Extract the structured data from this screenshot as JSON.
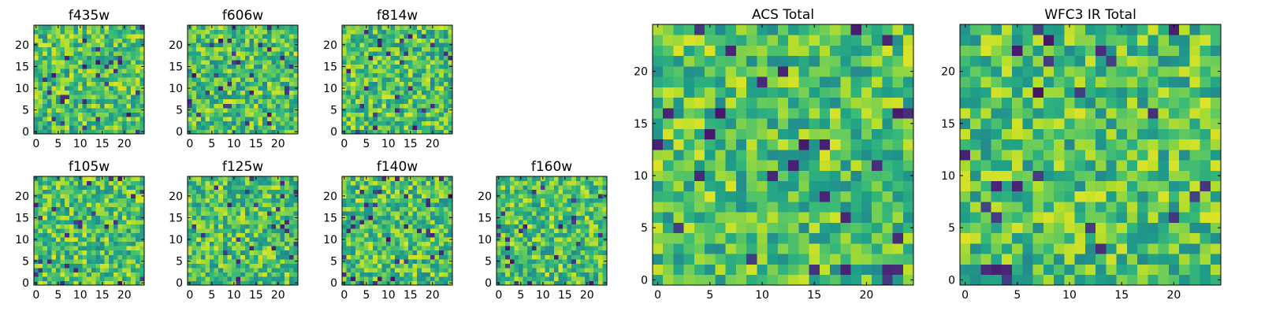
{
  "chart_data": [
    {
      "type": "heatmap",
      "title": "f435w",
      "xlim": [
        -0.5,
        24.5
      ],
      "ylim": [
        -0.5,
        24.5
      ],
      "size": 25,
      "seed": 11,
      "xticks": [
        0,
        5,
        10,
        15,
        20
      ],
      "yticks": [
        0,
        5,
        10,
        15,
        20
      ],
      "colormap": "viridis",
      "grid": false
    },
    {
      "type": "heatmap",
      "title": "f606w",
      "xlim": [
        -0.5,
        24.5
      ],
      "ylim": [
        -0.5,
        24.5
      ],
      "size": 25,
      "seed": 23,
      "xticks": [
        0,
        5,
        10,
        15,
        20
      ],
      "yticks": [
        0,
        5,
        10,
        15,
        20
      ],
      "colormap": "viridis",
      "grid": false
    },
    {
      "type": "heatmap",
      "title": "f814w",
      "xlim": [
        -0.5,
        24.5
      ],
      "ylim": [
        -0.5,
        24.5
      ],
      "size": 25,
      "seed": 37,
      "xticks": [
        0,
        5,
        10,
        15,
        20
      ],
      "yticks": [
        0,
        5,
        10,
        15,
        20
      ],
      "colormap": "viridis",
      "grid": false
    },
    {
      "type": "heatmap",
      "title": "f105w",
      "xlim": [
        -0.5,
        24.5
      ],
      "ylim": [
        -0.5,
        24.5
      ],
      "size": 25,
      "seed": 41,
      "xticks": [
        0,
        5,
        10,
        15,
        20
      ],
      "yticks": [
        0,
        5,
        10,
        15,
        20
      ],
      "colormap": "viridis",
      "grid": false
    },
    {
      "type": "heatmap",
      "title": "f125w",
      "xlim": [
        -0.5,
        24.5
      ],
      "ylim": [
        -0.5,
        24.5
      ],
      "size": 25,
      "seed": 53,
      "xticks": [
        0,
        5,
        10,
        15,
        20
      ],
      "yticks": [
        0,
        5,
        10,
        15,
        20
      ],
      "colormap": "viridis",
      "grid": false
    },
    {
      "type": "heatmap",
      "title": "f140w",
      "xlim": [
        -0.5,
        24.5
      ],
      "ylim": [
        -0.5,
        24.5
      ],
      "size": 25,
      "seed": 67,
      "xticks": [
        0,
        5,
        10,
        15,
        20
      ],
      "yticks": [
        0,
        5,
        10,
        15,
        20
      ],
      "colormap": "viridis",
      "grid": false
    },
    {
      "type": "heatmap",
      "title": "f160w",
      "xlim": [
        -0.5,
        24.5
      ],
      "ylim": [
        -0.5,
        24.5
      ],
      "size": 25,
      "seed": 79,
      "xticks": [
        0,
        5,
        10,
        15,
        20
      ],
      "yticks": [
        0,
        5,
        10,
        15,
        20
      ],
      "colormap": "viridis",
      "grid": false
    },
    {
      "type": "heatmap",
      "title": "ACS Total",
      "xlim": [
        -0.5,
        24.5
      ],
      "ylim": [
        -0.5,
        24.5
      ],
      "size": 25,
      "seed": 83,
      "xticks": [
        0,
        5,
        10,
        15,
        20
      ],
      "yticks": [
        0,
        5,
        10,
        15,
        20
      ],
      "colormap": "viridis",
      "grid": false
    },
    {
      "type": "heatmap",
      "title": "WFC3 IR Total",
      "xlim": [
        -0.5,
        24.5
      ],
      "ylim": [
        -0.5,
        24.5
      ],
      "size": 25,
      "seed": 97,
      "xticks": [
        0,
        5,
        10,
        15,
        20
      ],
      "yticks": [
        0,
        5,
        10,
        15,
        20
      ],
      "colormap": "viridis",
      "grid": false
    }
  ]
}
